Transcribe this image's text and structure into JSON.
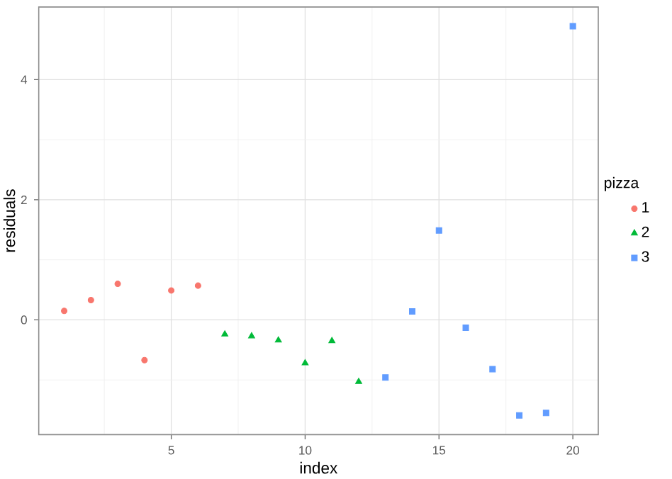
{
  "chart_data": {
    "type": "scatter",
    "xlabel": "index",
    "ylabel": "residuals",
    "legend_title": "pizza",
    "xlim": [
      0.05,
      20.95
    ],
    "ylim": [
      -1.91,
      5.21
    ],
    "xticks": [
      {
        "value": 2.5,
        "label": null
      },
      5,
      {
        "value": 7.5,
        "label": null
      },
      10,
      {
        "value": 12.5,
        "label": null
      },
      15,
      {
        "value": 17.5,
        "label": null
      },
      20
    ],
    "yticks": [
      {
        "value": -1,
        "label": null
      },
      0,
      {
        "value": 1,
        "label": null
      },
      2,
      {
        "value": 3,
        "label": null
      },
      4
    ],
    "grid": true,
    "legend": "right",
    "series": [
      {
        "name": "1",
        "color": "#f8766d",
        "marker": "circle",
        "x": [
          1,
          2,
          3,
          4,
          5,
          6
        ],
        "values": [
          0.15,
          0.33,
          0.6,
          -0.67,
          0.49,
          0.57
        ]
      },
      {
        "name": "2",
        "color": "#00ba38",
        "marker": "triangle",
        "x": [
          7,
          8,
          9,
          10,
          11,
          12
        ],
        "values": [
          -0.24,
          -0.27,
          -0.34,
          -0.72,
          -0.35,
          -1.03
        ]
      },
      {
        "name": "3",
        "color": "#619cff",
        "marker": "square",
        "x": [
          13,
          14,
          15,
          16,
          17,
          18,
          19,
          20
        ],
        "values": [
          -0.96,
          0.14,
          1.49,
          -0.13,
          -0.82,
          -1.59,
          -1.55,
          4.89
        ]
      }
    ]
  }
}
